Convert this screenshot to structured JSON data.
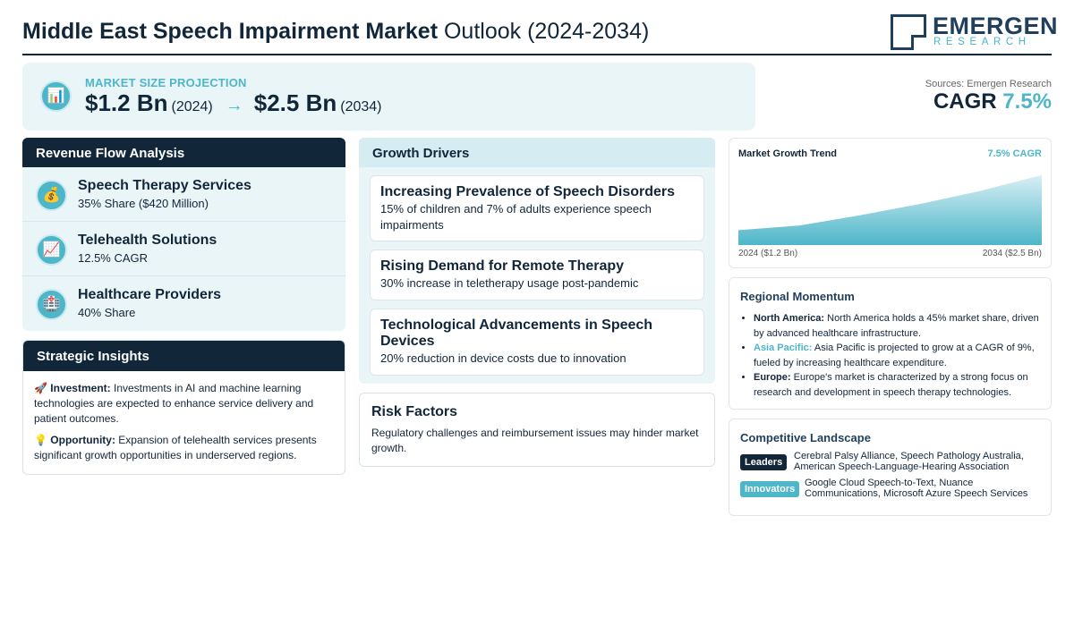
{
  "header": {
    "title_bold": "Middle East Speech Impairment Market",
    "title_rest": "Outlook (2024-2034)",
    "logo_name": "EMERGEN",
    "logo_sub": "RESEARCH"
  },
  "projection": {
    "label": "MARKET SIZE PROJECTION",
    "start_value": "$1.2 Bn",
    "start_year": "(2024)",
    "arrow": "→",
    "end_value": "$2.5 Bn",
    "end_year": "(2034)",
    "icon": "bar-chart-icon"
  },
  "sources": "Sources: Emergen Research",
  "cagr": {
    "label": "CAGR",
    "value": "7.5%"
  },
  "revenue_flow": {
    "title": "Revenue Flow Analysis",
    "items": [
      {
        "icon": "money-bag-icon",
        "glyph": "💰",
        "title": "Speech Therapy Services",
        "sub": "35% Share ($420 Million)"
      },
      {
        "icon": "trend-chart-icon",
        "glyph": "📈",
        "title": "Telehealth Solutions",
        "sub": "12.5% CAGR"
      },
      {
        "icon": "hospital-icon",
        "glyph": "🏥",
        "title": "Healthcare Providers",
        "sub": "40% Share"
      }
    ]
  },
  "strategic_insights": {
    "title": "Strategic Insights",
    "items": [
      {
        "icon": "rocket-icon",
        "glyph": "🚀",
        "label": "Investment:",
        "text": "Investments in AI and machine learning technologies are expected to enhance service delivery and patient outcomes."
      },
      {
        "icon": "lightbulb-icon",
        "glyph": "💡",
        "label": "Opportunity:",
        "text": "Expansion of telehealth services presents significant growth opportunities in underserved regions."
      }
    ]
  },
  "growth_drivers": {
    "title": "Growth Drivers",
    "items": [
      {
        "title": "Increasing Prevalence of Speech Disorders",
        "text": "15% of children and 7% of adults experience speech impairments"
      },
      {
        "title": "Rising Demand for Remote Therapy",
        "text": "30% increase in teletherapy usage post-pandemic"
      },
      {
        "title": "Technological Advancements in Speech Devices",
        "text": "20% reduction in device costs due to innovation"
      }
    ]
  },
  "risk_factors": {
    "title": "Risk Factors",
    "text": "Regulatory challenges and reimbursement issues may hinder market growth."
  },
  "trend": {
    "title": "Market Growth Trend",
    "cagr_label": "7.5% CAGR",
    "x_start_label": "2024 ($1.2 Bn)",
    "x_end_label": "2034 ($2.5 Bn)"
  },
  "chart_data": {
    "type": "area",
    "x": [
      2024,
      2026,
      2028,
      2030,
      2032,
      2034
    ],
    "series": [
      {
        "values": [
          1.2,
          1.31,
          1.55,
          1.82,
          2.13,
          2.5
        ]
      }
    ],
    "ylim": [
      0.85,
      2.6
    ],
    "title": "Market Growth Trend",
    "xlabel": "",
    "ylabel": "",
    "grid": false,
    "colors": {
      "fill_top": "#d9eff4",
      "fill_bottom": "#4db6c9"
    }
  },
  "regional": {
    "title": "Regional Momentum",
    "items": [
      {
        "label": "North America:",
        "text": "North America holds a 45% market share, driven by advanced healthcare infrastructure.",
        "style": "dark"
      },
      {
        "label": "Asia Pacific:",
        "text": "Asia Pacific is projected to grow at a CAGR of 9%, fueled by increasing healthcare expenditure.",
        "style": "teal"
      },
      {
        "label": "Europe:",
        "text": "Europe's market is characterized by a strong focus on research and development in speech therapy technologies.",
        "style": "dark"
      }
    ]
  },
  "competitive": {
    "title": "Competitive Landscape",
    "leaders_label": "Leaders",
    "leaders_text": "Cerebral Palsy Alliance, Speech Pathology Australia, American Speech-Language-Hearing Association",
    "innovators_label": "Innovators",
    "innovators_text": "Google Cloud Speech-to-Text, Nuance Communications, Microsoft Azure Speech Services"
  },
  "colors": {
    "navy": "#12263a",
    "teal": "#4db6c9",
    "panel_bg": "#eaf5f8"
  }
}
